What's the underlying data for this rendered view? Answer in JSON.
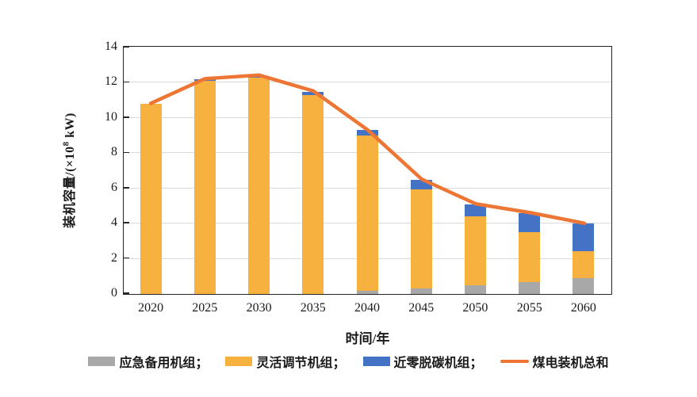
{
  "chart_data": {
    "type": "bar",
    "subtype": "stacked-bars-with-line-overlay",
    "title": "",
    "xlabel": "时间/年",
    "ylabel": "装机容量/(×10⁸ kW)",
    "categories": [
      "2020",
      "2025",
      "2030",
      "2035",
      "2040",
      "2045",
      "2050",
      "2055",
      "2060"
    ],
    "series": [
      {
        "name": "应急备用机组",
        "color": "#A8A8A8",
        "values": [
          0,
          0,
          0,
          0,
          0.2,
          0.3,
          0.5,
          0.7,
          0.9
        ]
      },
      {
        "name": "灵活调节机组",
        "color": "#F6B13E",
        "values": [
          10.8,
          12.1,
          12.3,
          11.3,
          8.8,
          5.65,
          3.9,
          2.8,
          1.55
        ]
      },
      {
        "name": "近零脱碳机组",
        "color": "#4472C4",
        "values": [
          0,
          0.1,
          0.1,
          0.2,
          0.3,
          0.55,
          0.7,
          1.1,
          1.55
        ]
      }
    ],
    "line_series": {
      "name": "煤电装机总和",
      "color": "#ED7634",
      "values": [
        10.8,
        12.2,
        12.4,
        11.5,
        9.3,
        6.5,
        5.1,
        4.6,
        4.0
      ]
    },
    "ylim": [
      0,
      14
    ],
    "yticks": [
      0,
      2,
      4,
      6,
      8,
      10,
      12,
      14
    ],
    "grid": true,
    "plot_border": true,
    "legend_position": "bottom"
  },
  "y_axis_title": {
    "prefix": "装机容量/(×10",
    "sup": "8",
    "suffix": " kW)"
  },
  "x_axis_title": "时间/年",
  "legend": {
    "items": [
      {
        "label": "应急备用机组；"
      },
      {
        "label": "灵活调节机组；"
      },
      {
        "label": "近零脱碳机组；"
      },
      {
        "label": "煤电装机总和"
      }
    ]
  }
}
